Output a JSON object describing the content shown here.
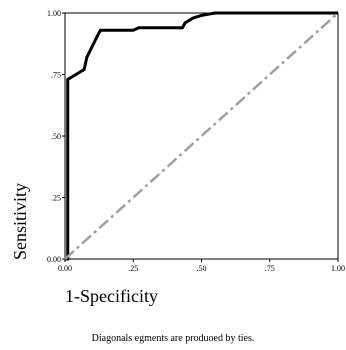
{
  "chart_data": {
    "type": "line",
    "xlabel": "1-Specificity",
    "ylabel": "Sensitivity",
    "xlim": [
      0,
      1
    ],
    "ylim": [
      0,
      1
    ],
    "x_ticks": [
      {
        "value": 0,
        "label": "0.00"
      },
      {
        "value": 0.25,
        "label": ".25"
      },
      {
        "value": 0.5,
        "label": ".50"
      },
      {
        "value": 0.75,
        "label": ".75"
      },
      {
        "value": 1,
        "label": "1.00"
      }
    ],
    "y_ticks": [
      {
        "value": 0,
        "label": "0.00"
      },
      {
        "value": 0.25,
        "label": ".25"
      },
      {
        "value": 0.5,
        "label": ".50"
      },
      {
        "value": 0.75,
        "label": ".75"
      },
      {
        "value": 1,
        "label": "1.00"
      }
    ],
    "grid": false,
    "series": [
      {
        "style": "solid",
        "color": "#000000",
        "x": [
          0,
          0.01,
          0.01,
          0.04,
          0.07,
          0.08,
          0.12,
          0.13,
          0.25,
          0.27,
          0.43,
          0.44,
          0.47,
          0.5,
          0.55,
          1.0
        ],
        "y": [
          0,
          0,
          0.73,
          0.75,
          0.77,
          0.82,
          0.91,
          0.93,
          0.93,
          0.94,
          0.94,
          0.96,
          0.98,
          0.99,
          1.0,
          1.0
        ]
      },
      {
        "style": "dash-dot",
        "color": "#a0a0a0",
        "x": [
          0,
          1
        ],
        "y": [
          0,
          1
        ]
      }
    ]
  },
  "note": "Diagonals egments are produoed by ties."
}
